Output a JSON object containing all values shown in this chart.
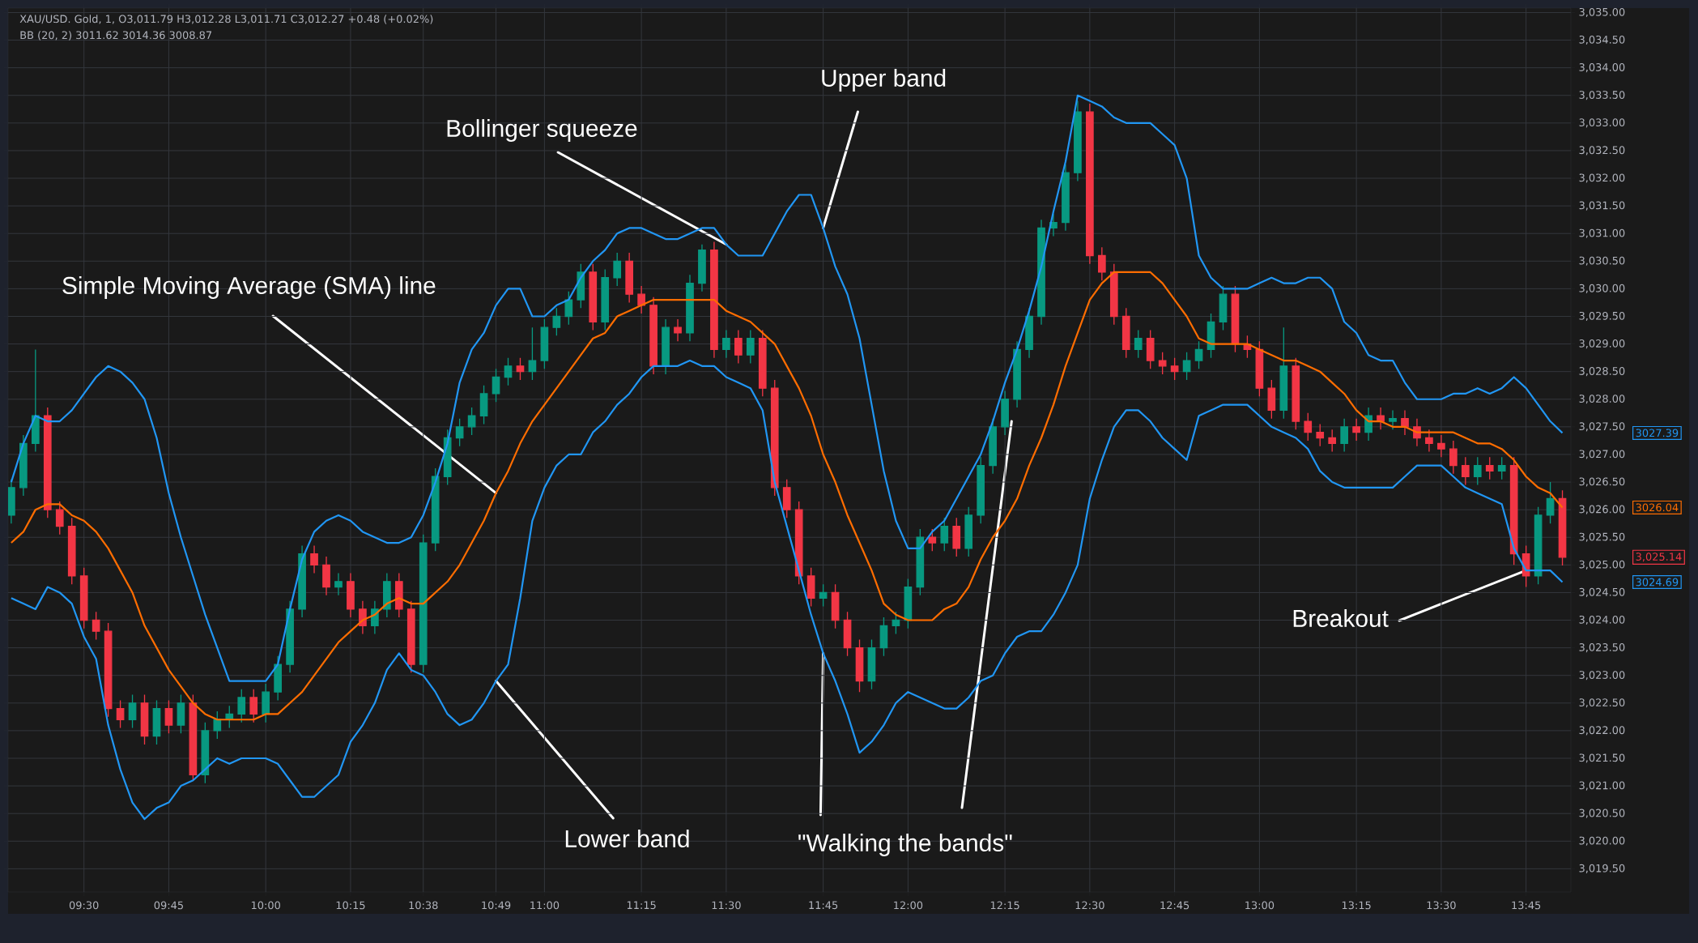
{
  "chart_data": {
    "type": "candlestick",
    "title": "XAU/USD. Gold, 1, O3,011.79 H3,012.28 L3,011.71 C3,012.27 +0.48 (+0.02%)",
    "subtitle": "BB (20, 2) 3011.62 3014.36 3008.87",
    "annotations": [
      {
        "text": "Bollinger squeeze",
        "x": "11:30",
        "y": 3030.8
      },
      {
        "text": "Upper band",
        "x": "11:45",
        "y": 3031.1
      },
      {
        "text": "Simple Moving Average (SMA) line",
        "x": "10:49",
        "y": 3026.3
      },
      {
        "text": "Lower band",
        "x": "10:49",
        "y": 3022.9
      },
      {
        "text": "\"Walking the bands\"",
        "x": "11:45",
        "y": 3023.4
      },
      {
        "text": "Breakout",
        "x": "13:45",
        "y": 3024.9
      },
      "3027.39",
      "3026.04",
      "3,025.14",
      "3024.69"
    ],
    "categories": [
      null,
      null,
      null,
      null,
      null,
      null,
      "09:30",
      null,
      null,
      null,
      null,
      null,
      null,
      "09:45",
      null,
      null,
      null,
      null,
      null,
      null,
      null,
      "10:00",
      null,
      null,
      null,
      null,
      null,
      null,
      "10:15",
      null,
      null,
      null,
      null,
      null,
      "10:38",
      null,
      null,
      null,
      null,
      null,
      "10:49",
      null,
      null,
      null,
      "11:00",
      null,
      null,
      null,
      null,
      null,
      null,
      null,
      "11:15",
      null,
      null,
      null,
      null,
      null,
      null,
      "11:30",
      null,
      null,
      null,
      null,
      null,
      null,
      null,
      "11:45",
      null,
      null,
      null,
      null,
      null,
      null,
      "12:00",
      null,
      null,
      null,
      null,
      null,
      null,
      null,
      "12:15",
      null,
      null,
      null,
      null,
      null,
      null,
      "12:30",
      null,
      null,
      null,
      null,
      null,
      null,
      "12:45",
      null,
      null,
      null,
      null,
      null,
      null,
      "13:00",
      null,
      null,
      null,
      null,
      null,
      null,
      null,
      "13:15",
      null,
      null,
      null,
      null,
      null,
      null,
      "13:30",
      null,
      null,
      null,
      null,
      null,
      null,
      "13:45",
      null,
      null,
      null
    ],
    "ylim": [
      3019.08,
      3035.08
    ],
    "yticks": [
      {
        "value": 3019.5,
        "label": "3,019.50"
      },
      {
        "value": 3020,
        "label": "3,020.00"
      },
      {
        "value": 3020.5,
        "label": "3,020.50"
      },
      {
        "value": 3021,
        "label": "3,021.00"
      },
      {
        "value": 3021.5,
        "label": "3,021.50"
      },
      {
        "value": 3022,
        "label": "3,022.00"
      },
      {
        "value": 3022.5,
        "label": "3,022.50"
      },
      {
        "value": 3023,
        "label": "3,023.00"
      },
      {
        "value": 3023.5,
        "label": "3,023.50"
      },
      {
        "value": 3024,
        "label": "3,024.00"
      },
      {
        "value": 3024.5,
        "label": "3,024.50"
      },
      {
        "value": 3025,
        "label": "3,025.00"
      },
      {
        "value": 3025.5,
        "label": "3,025.50"
      },
      {
        "value": 3026,
        "label": "3,026.00"
      },
      {
        "value": 3026.5,
        "label": "3,026.50"
      },
      {
        "value": 3027,
        "label": "3,027.00"
      },
      {
        "value": 3027.5,
        "label": "3,027.50"
      },
      {
        "value": 3028,
        "label": "3,028.00"
      },
      {
        "value": 3028.5,
        "label": "3,028.50"
      },
      {
        "value": 3029,
        "label": "3,029.00"
      },
      {
        "value": 3029.5,
        "label": "3,029.50"
      },
      {
        "value": 3030,
        "label": "3,030.00"
      },
      {
        "value": 3030.5,
        "label": "3,030.50"
      },
      {
        "value": 3031,
        "label": "3,031.00"
      },
      {
        "value": 3031.5,
        "label": "3,031.50"
      },
      {
        "value": 3032,
        "label": "3,032.00"
      },
      {
        "value": 3032.5,
        "label": "3,032.50"
      },
      {
        "value": 3033,
        "label": "3,033.00"
      },
      {
        "value": 3033.5,
        "label": "3,033.50"
      },
      {
        "value": 3034,
        "label": "3,034.00"
      },
      {
        "value": 3034.5,
        "label": "3,034.50"
      },
      {
        "value": 3035,
        "label": "3,035.00"
      }
    ],
    "grid": true,
    "series": [
      {
        "type": "line",
        "color": "#2196f3",
        "values": [
          3026.5,
          3027.2,
          3027.7,
          3027.6,
          3027.6,
          3027.8,
          3028.1,
          3028.4,
          3028.6,
          3028.5,
          3028.3,
          3028.0,
          3027.3,
          3026.3,
          3025.5,
          3024.8,
          3024.1,
          3023.5,
          3022.9,
          3022.9,
          3022.9,
          3022.9,
          3023.2,
          3024.2,
          3025.1,
          3025.6,
          3025.8,
          3025.9,
          3025.8,
          3025.6,
          3025.5,
          3025.4,
          3025.4,
          3025.5,
          3025.9,
          3026.5,
          3027.2,
          3028.3,
          3028.9,
          3029.2,
          3029.7,
          3030.0,
          3030.0,
          3029.5,
          3029.5,
          3029.7,
          3029.8,
          3030.2,
          3030.5,
          3030.7,
          3031.0,
          3031.1,
          3031.1,
          3031.0,
          3030.9,
          3030.9,
          3031.0,
          3031.1,
          3031.1,
          3030.8,
          3030.6,
          3030.6,
          3030.6,
          3031.0,
          3031.4,
          3031.7,
          3031.7,
          3031.1,
          3030.4,
          3029.9,
          3029.1,
          3027.9,
          3026.7,
          3025.8,
          3025.3,
          3025.3,
          3025.6,
          3025.8,
          3026.2,
          3026.6,
          3027.0,
          3027.6,
          3028.3,
          3028.9,
          3029.6,
          3030.4,
          3031.4,
          3032.3,
          3033.5,
          3033.4,
          3033.3,
          3033.1,
          3033.0,
          3033.0,
          3033.0,
          3032.8,
          3032.6,
          3032.0,
          3030.6,
          3030.2,
          3030.0,
          3030.0,
          3030.0,
          3030.1,
          3030.2,
          3030.1,
          3030.1,
          3030.2,
          3030.2,
          3030.0,
          3029.4,
          3029.2,
          3028.8,
          3028.7,
          3028.7,
          3028.3,
          3028.0,
          3028.0,
          3028.0,
          3028.1,
          3028.1,
          3028.2,
          3028.1,
          3028.2,
          3028.4,
          3028.2,
          3027.9,
          3027.6,
          3027.39
        ]
      },
      {
        "type": "line",
        "color": "#ff6d00",
        "values": [
          3025.4,
          3025.6,
          3026.0,
          3026.1,
          3026.1,
          3025.9,
          3025.8,
          3025.6,
          3025.3,
          3024.9,
          3024.5,
          3023.9,
          3023.5,
          3023.1,
          3022.8,
          3022.5,
          3022.3,
          3022.2,
          3022.2,
          3022.2,
          3022.2,
          3022.3,
          3022.3,
          3022.5,
          3022.7,
          3023.0,
          3023.3,
          3023.6,
          3023.8,
          3024.0,
          3024.1,
          3024.3,
          3024.4,
          3024.3,
          3024.3,
          3024.5,
          3024.7,
          3025.0,
          3025.4,
          3025.8,
          3026.3,
          3026.7,
          3027.2,
          3027.6,
          3027.9,
          3028.2,
          3028.5,
          3028.8,
          3029.1,
          3029.2,
          3029.5,
          3029.6,
          3029.7,
          3029.8,
          3029.8,
          3029.8,
          3029.8,
          3029.8,
          3029.8,
          3029.6,
          3029.5,
          3029.4,
          3029.2,
          3029.0,
          3028.6,
          3028.2,
          3027.7,
          3027.0,
          3026.5,
          3025.9,
          3025.4,
          3024.9,
          3024.3,
          3024.1,
          3024.0,
          3024.0,
          3024.0,
          3024.2,
          3024.3,
          3024.6,
          3025.1,
          3025.5,
          3025.8,
          3026.2,
          3026.8,
          3027.3,
          3027.9,
          3028.6,
          3029.2,
          3029.8,
          3030.1,
          3030.3,
          3030.3,
          3030.3,
          3030.3,
          3030.1,
          3029.8,
          3029.5,
          3029.1,
          3029.0,
          3029.0,
          3029.0,
          3029.0,
          3028.9,
          3028.8,
          3028.7,
          3028.7,
          3028.6,
          3028.5,
          3028.3,
          3028.1,
          3027.8,
          3027.6,
          3027.6,
          3027.5,
          3027.5,
          3027.4,
          3027.4,
          3027.4,
          3027.4,
          3027.3,
          3027.2,
          3027.2,
          3027.1,
          3026.9,
          3026.6,
          3026.4,
          3026.3,
          3026.04
        ]
      },
      {
        "type": "line",
        "color": "#2196f3",
        "values": [
          3024.4,
          3024.3,
          3024.2,
          3024.6,
          3024.5,
          3024.3,
          3023.7,
          3023.3,
          3022.1,
          3021.3,
          3020.7,
          3020.4,
          3020.6,
          3020.7,
          3021.0,
          3021.1,
          3021.3,
          3021.5,
          3021.4,
          3021.5,
          3021.5,
          3021.5,
          3021.4,
          3021.1,
          3020.8,
          3020.8,
          3021.0,
          3021.2,
          3021.8,
          3022.1,
          3022.5,
          3023.1,
          3023.4,
          3023.1,
          3023.0,
          3022.7,
          3022.3,
          3022.1,
          3022.2,
          3022.5,
          3022.9,
          3023.2,
          3024.4,
          3025.8,
          3026.4,
          3026.8,
          3027.0,
          3027.0,
          3027.4,
          3027.6,
          3027.9,
          3028.1,
          3028.4,
          3028.6,
          3028.6,
          3028.6,
          3028.7,
          3028.6,
          3028.6,
          3028.4,
          3028.3,
          3028.2,
          3027.8,
          3026.5,
          3025.7,
          3024.9,
          3024.1,
          3023.4,
          3022.9,
          3022.3,
          3021.6,
          3021.8,
          3022.1,
          3022.5,
          3022.7,
          3022.6,
          3022.5,
          3022.4,
          3022.4,
          3022.6,
          3022.9,
          3023.0,
          3023.4,
          3023.7,
          3023.8,
          3023.8,
          3024.1,
          3024.5,
          3025.0,
          3026.2,
          3026.9,
          3027.5,
          3027.8,
          3027.8,
          3027.6,
          3027.3,
          3027.1,
          3026.9,
          3027.7,
          3027.8,
          3027.9,
          3027.9,
          3027.9,
          3027.7,
          3027.5,
          3027.4,
          3027.3,
          3027.1,
          3026.7,
          3026.5,
          3026.4,
          3026.4,
          3026.4,
          3026.4,
          3026.4,
          3026.6,
          3026.8,
          3026.8,
          3026.8,
          3026.6,
          3026.4,
          3026.3,
          3026.2,
          3026.1,
          3025.3,
          3024.9,
          3024.9,
          3024.9,
          3024.69
        ]
      },
      {
        "type": "candlestick",
        "colors": [
          "#089981",
          "#089981",
          "#089981",
          "#f23645",
          "#f23645",
          "#f23645",
          "#f23645",
          "#f23645",
          "#f23645",
          "#f23645",
          "#089981",
          "#f23645",
          "#089981",
          "#f23645",
          "#089981",
          "#f23645",
          "#089981",
          "#089981",
          "#089981",
          "#089981",
          "#f23645",
          "#089981",
          "#089981",
          "#089981",
          "#089981",
          "#f23645",
          "#f23645",
          "#089981",
          "#f23645",
          "#f23645",
          "#089981",
          "#089981",
          "#f23645",
          "#f23645",
          "#089981",
          "#089981",
          "#089981",
          "#089981",
          "#089981",
          "#089981",
          "#089981",
          "#089981",
          "#f23645",
          "#089981",
          "#089981",
          "#089981",
          "#089981",
          "#089981",
          "#f23645",
          "#089981",
          "#089981",
          "#f23645",
          "#f23645",
          "#f23645",
          "#089981",
          "#f23645",
          "#089981",
          "#089981",
          "#f23645",
          "#089981",
          "#f23645",
          "#089981",
          "#f23645",
          "#f23645",
          "#f23645",
          "#f23645",
          "#f23645",
          "#089981",
          "#f23645",
          "#f23645",
          "#f23645",
          "#089981",
          "#089981",
          "#089981",
          "#089981",
          "#089981",
          "#f23645",
          "#089981",
          "#f23645",
          "#089981",
          "#089981",
          "#089981",
          "#089981",
          "#089981",
          "#089981",
          "#089981",
          "#089981",
          "#089981",
          "#089981",
          "#f23645",
          "#f23645",
          "#f23645",
          "#f23645",
          "#089981",
          "#f23645",
          "#f23645",
          "#f23645",
          "#089981",
          "#089981",
          "#089981",
          "#089981",
          "#f23645",
          "#f23645",
          "#f23645",
          "#f23645",
          "#089981",
          "#f23645",
          "#f23645",
          "#f23645",
          "#f23645",
          "#089981",
          "#f23645",
          "#089981",
          "#f23645",
          "#089981",
          "#f23645",
          "#f23645",
          "#f23645",
          "#f23645",
          "#f23645",
          "#f23645",
          "#089981",
          "#f23645",
          "#089981",
          "#f23645",
          "#f23645",
          "#089981",
          "#089981",
          "#f23645"
        ],
        "ohlc": [
          [
            3025.9,
            3026.55,
            3025.75,
            3026.4
          ],
          [
            3026.4,
            3027.35,
            3026.25,
            3027.2
          ],
          [
            3027.2,
            3028.9,
            3027.05,
            3027.7
          ],
          [
            3027.7,
            3027.85,
            3025.85,
            3026.0
          ],
          [
            3026.0,
            3026.15,
            3025.55,
            3025.7
          ],
          [
            3025.7,
            3025.85,
            3024.65,
            3024.8
          ],
          [
            3024.8,
            3024.95,
            3023.85,
            3024.0
          ],
          [
            3024.0,
            3024.15,
            3023.65,
            3023.8
          ],
          [
            3023.8,
            3023.95,
            3022.25,
            3022.4
          ],
          [
            3022.4,
            3022.55,
            3022.05,
            3022.2
          ],
          [
            3022.2,
            3022.65,
            3022.05,
            3022.5
          ],
          [
            3022.5,
            3022.65,
            3021.75,
            3021.9
          ],
          [
            3021.9,
            3022.55,
            3021.75,
            3022.4
          ],
          [
            3022.4,
            3022.55,
            3021.95,
            3022.1
          ],
          [
            3022.1,
            3022.65,
            3021.95,
            3022.5
          ],
          [
            3022.5,
            3022.65,
            3021.1,
            3021.2
          ],
          [
            3021.2,
            3022.15,
            3021.05,
            3022.0
          ],
          [
            3022.0,
            3022.35,
            3021.85,
            3022.2
          ],
          [
            3022.2,
            3022.45,
            3022.05,
            3022.3
          ],
          [
            3022.3,
            3022.75,
            3022.15,
            3022.6
          ],
          [
            3022.6,
            3022.75,
            3022.15,
            3022.3
          ],
          [
            3022.3,
            3022.85,
            3022.15,
            3022.7
          ],
          [
            3022.7,
            3023.35,
            3022.55,
            3023.2
          ],
          [
            3023.2,
            3024.35,
            3023.05,
            3024.2
          ],
          [
            3024.2,
            3025.35,
            3024.05,
            3025.2
          ],
          [
            3025.2,
            3025.35,
            3024.85,
            3025.0
          ],
          [
            3025.0,
            3025.15,
            3024.45,
            3024.6
          ],
          [
            3024.6,
            3024.85,
            3024.45,
            3024.7
          ],
          [
            3024.7,
            3024.85,
            3024.05,
            3024.2
          ],
          [
            3024.2,
            3024.35,
            3023.75,
            3023.9
          ],
          [
            3023.9,
            3024.35,
            3023.75,
            3024.2
          ],
          [
            3024.2,
            3024.85,
            3024.05,
            3024.7
          ],
          [
            3024.7,
            3024.85,
            3024.05,
            3024.2
          ],
          [
            3024.2,
            3024.35,
            3023.05,
            3023.2
          ],
          [
            3023.2,
            3025.55,
            3023.05,
            3025.4
          ],
          [
            3025.4,
            3026.75,
            3025.25,
            3026.6
          ],
          [
            3026.6,
            3027.45,
            3026.45,
            3027.3
          ],
          [
            3027.3,
            3027.65,
            3027.15,
            3027.5
          ],
          [
            3027.5,
            3027.85,
            3027.35,
            3027.7
          ],
          [
            3027.7,
            3028.25,
            3027.55,
            3028.1
          ],
          [
            3028.1,
            3028.55,
            3027.95,
            3028.4
          ],
          [
            3028.4,
            3028.75,
            3028.25,
            3028.6
          ],
          [
            3028.6,
            3028.75,
            3028.35,
            3028.5
          ],
          [
            3028.5,
            3029.3,
            3028.35,
            3028.7
          ],
          [
            3028.7,
            3029.45,
            3028.55,
            3029.3
          ],
          [
            3029.3,
            3029.65,
            3029.15,
            3029.5
          ],
          [
            3029.5,
            3029.95,
            3029.35,
            3029.8
          ],
          [
            3029.8,
            3030.45,
            3029.65,
            3030.3
          ],
          [
            3030.3,
            3030.45,
            3029.25,
            3029.4
          ],
          [
            3029.4,
            3030.35,
            3029.25,
            3030.2
          ],
          [
            3030.2,
            3030.65,
            3030.05,
            3030.5
          ],
          [
            3030.5,
            3030.65,
            3029.75,
            3029.9
          ],
          [
            3029.9,
            3030.05,
            3029.55,
            3029.7
          ],
          [
            3029.7,
            3029.85,
            3028.45,
            3028.6
          ],
          [
            3028.6,
            3029.45,
            3028.45,
            3029.3
          ],
          [
            3029.3,
            3029.45,
            3029.05,
            3029.2
          ],
          [
            3029.2,
            3030.25,
            3029.05,
            3030.1
          ],
          [
            3030.1,
            3030.8,
            3029.95,
            3030.7
          ],
          [
            3030.7,
            3030.85,
            3028.75,
            3028.9
          ],
          [
            3028.9,
            3029.25,
            3028.75,
            3029.1
          ],
          [
            3029.1,
            3029.25,
            3028.65,
            3028.8
          ],
          [
            3028.8,
            3029.25,
            3028.65,
            3029.1
          ],
          [
            3029.1,
            3029.25,
            3028.05,
            3028.2
          ],
          [
            3028.2,
            3028.35,
            3026.25,
            3026.4
          ],
          [
            3026.4,
            3026.55,
            3025.85,
            3026.0
          ],
          [
            3026.0,
            3026.15,
            3024.65,
            3024.8
          ],
          [
            3024.8,
            3024.95,
            3024.25,
            3024.4
          ],
          [
            3024.4,
            3024.65,
            3024.25,
            3024.5
          ],
          [
            3024.5,
            3024.65,
            3023.85,
            3024.0
          ],
          [
            3024.0,
            3024.15,
            3023.35,
            3023.5
          ],
          [
            3023.5,
            3023.65,
            3022.7,
            3022.9
          ],
          [
            3022.9,
            3023.65,
            3022.75,
            3023.5
          ],
          [
            3023.5,
            3024.05,
            3023.35,
            3023.9
          ],
          [
            3023.9,
            3024.15,
            3023.75,
            3024.0
          ],
          [
            3024.0,
            3024.75,
            3023.85,
            3024.6
          ],
          [
            3024.6,
            3025.65,
            3024.45,
            3025.5
          ],
          [
            3025.5,
            3025.65,
            3025.25,
            3025.4
          ],
          [
            3025.4,
            3025.85,
            3025.25,
            3025.7
          ],
          [
            3025.7,
            3025.85,
            3025.15,
            3025.3
          ],
          [
            3025.3,
            3026.05,
            3025.15,
            3025.9
          ],
          [
            3025.9,
            3026.95,
            3025.75,
            3026.8
          ],
          [
            3026.8,
            3027.65,
            3026.65,
            3027.5
          ],
          [
            3027.5,
            3028.15,
            3027.35,
            3028.0
          ],
          [
            3028.0,
            3029.05,
            3027.85,
            3028.9
          ],
          [
            3028.9,
            3029.65,
            3028.75,
            3029.5
          ],
          [
            3029.5,
            3031.25,
            3029.35,
            3031.1
          ],
          [
            3031.1,
            3031.35,
            3030.95,
            3031.2
          ],
          [
            3031.2,
            3032.25,
            3031.05,
            3032.1
          ],
          [
            3032.1,
            3033.4,
            3031.95,
            3033.2
          ],
          [
            3033.2,
            3033.35,
            3030.45,
            3030.6
          ],
          [
            3030.6,
            3030.75,
            3030.15,
            3030.3
          ],
          [
            3030.3,
            3030.45,
            3029.35,
            3029.5
          ],
          [
            3029.5,
            3029.65,
            3028.75,
            3028.9
          ],
          [
            3028.9,
            3029.25,
            3028.75,
            3029.1
          ],
          [
            3029.1,
            3029.25,
            3028.55,
            3028.7
          ],
          [
            3028.7,
            3028.85,
            3028.45,
            3028.6
          ],
          [
            3028.6,
            3028.75,
            3028.35,
            3028.5
          ],
          [
            3028.5,
            3028.85,
            3028.35,
            3028.7
          ],
          [
            3028.7,
            3029.05,
            3028.55,
            3028.9
          ],
          [
            3028.9,
            3029.55,
            3028.75,
            3029.4
          ],
          [
            3029.4,
            3030.05,
            3029.25,
            3029.9
          ],
          [
            3029.9,
            3030.05,
            3028.85,
            3029.0
          ],
          [
            3029.0,
            3029.15,
            3028.75,
            3028.9
          ],
          [
            3028.9,
            3029.05,
            3028.05,
            3028.2
          ],
          [
            3028.2,
            3028.35,
            3027.65,
            3027.8
          ],
          [
            3027.8,
            3029.3,
            3027.65,
            3028.6
          ],
          [
            3028.6,
            3028.75,
            3027.45,
            3027.6
          ],
          [
            3027.6,
            3027.75,
            3027.25,
            3027.4
          ],
          [
            3027.4,
            3027.55,
            3027.15,
            3027.3
          ],
          [
            3027.3,
            3027.45,
            3027.05,
            3027.2
          ],
          [
            3027.2,
            3027.65,
            3027.05,
            3027.5
          ],
          [
            3027.5,
            3027.65,
            3027.25,
            3027.4
          ],
          [
            3027.4,
            3027.85,
            3027.25,
            3027.7
          ],
          [
            3027.7,
            3027.85,
            3027.45,
            3027.6
          ],
          [
            3027.6,
            3027.8,
            3027.45,
            3027.65
          ],
          [
            3027.65,
            3027.8,
            3027.35,
            3027.5
          ],
          [
            3027.5,
            3027.65,
            3027.15,
            3027.3
          ],
          [
            3027.3,
            3027.45,
            3027.05,
            3027.2
          ],
          [
            3027.2,
            3027.35,
            3026.95,
            3027.1
          ],
          [
            3027.1,
            3027.25,
            3026.65,
            3026.8
          ],
          [
            3026.8,
            3026.95,
            3026.45,
            3026.6
          ],
          [
            3026.6,
            3026.95,
            3026.45,
            3026.8
          ],
          [
            3026.8,
            3026.95,
            3026.55,
            3026.7
          ],
          [
            3026.7,
            3026.95,
            3026.55,
            3026.8
          ],
          [
            3026.8,
            3026.95,
            3025.0,
            3025.2
          ],
          [
            3025.2,
            3025.35,
            3024.6,
            3024.8
          ],
          [
            3024.8,
            3026.05,
            3024.65,
            3025.9
          ],
          [
            3025.9,
            3026.5,
            3025.75,
            3026.2
          ],
          [
            3026.2,
            3026.35,
            3024.99,
            3025.14
          ]
        ]
      }
    ]
  }
}
